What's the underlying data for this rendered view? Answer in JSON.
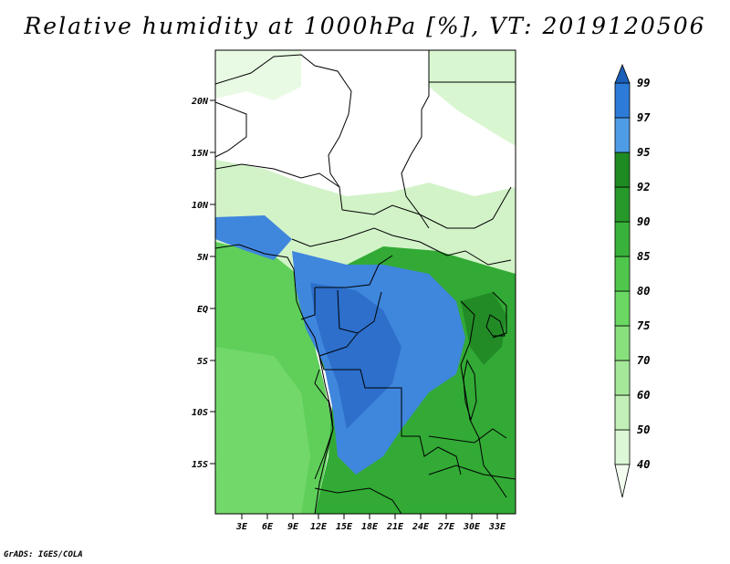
{
  "title": "Relative humidity at 1000hPa [%], VT: 2019120506",
  "credit": "GrADS: IGES/COLA",
  "map": {
    "lat_ticks": [
      "20N",
      "15N",
      "10N",
      "5N",
      "EQ",
      "5S",
      "10S",
      "15S"
    ],
    "lon_ticks": [
      "3E",
      "6E",
      "9E",
      "12E",
      "15E",
      "18E",
      "21E",
      "24E",
      "27E",
      "30E",
      "33E"
    ]
  },
  "colorbar": {
    "levels": [
      "40",
      "50",
      "60",
      "70",
      "75",
      "80",
      "85",
      "90",
      "92",
      "95",
      "97",
      "99"
    ],
    "colors": [
      "#f2fdf0",
      "#dcf7d6",
      "#c2f0b8",
      "#a6e89a",
      "#88e07c",
      "#6ad862",
      "#4fc74c",
      "#38b23a",
      "#27992a",
      "#1e8a22",
      "#4f9ce6",
      "#2d7bd8",
      "#1a5fb8"
    ]
  },
  "colors": {
    "land_bright": "#ffffff",
    "ocean": "#5fcf5a",
    "moist": "#2aa32f",
    "very_moist": "#3f86dd",
    "border": "#000000"
  }
}
